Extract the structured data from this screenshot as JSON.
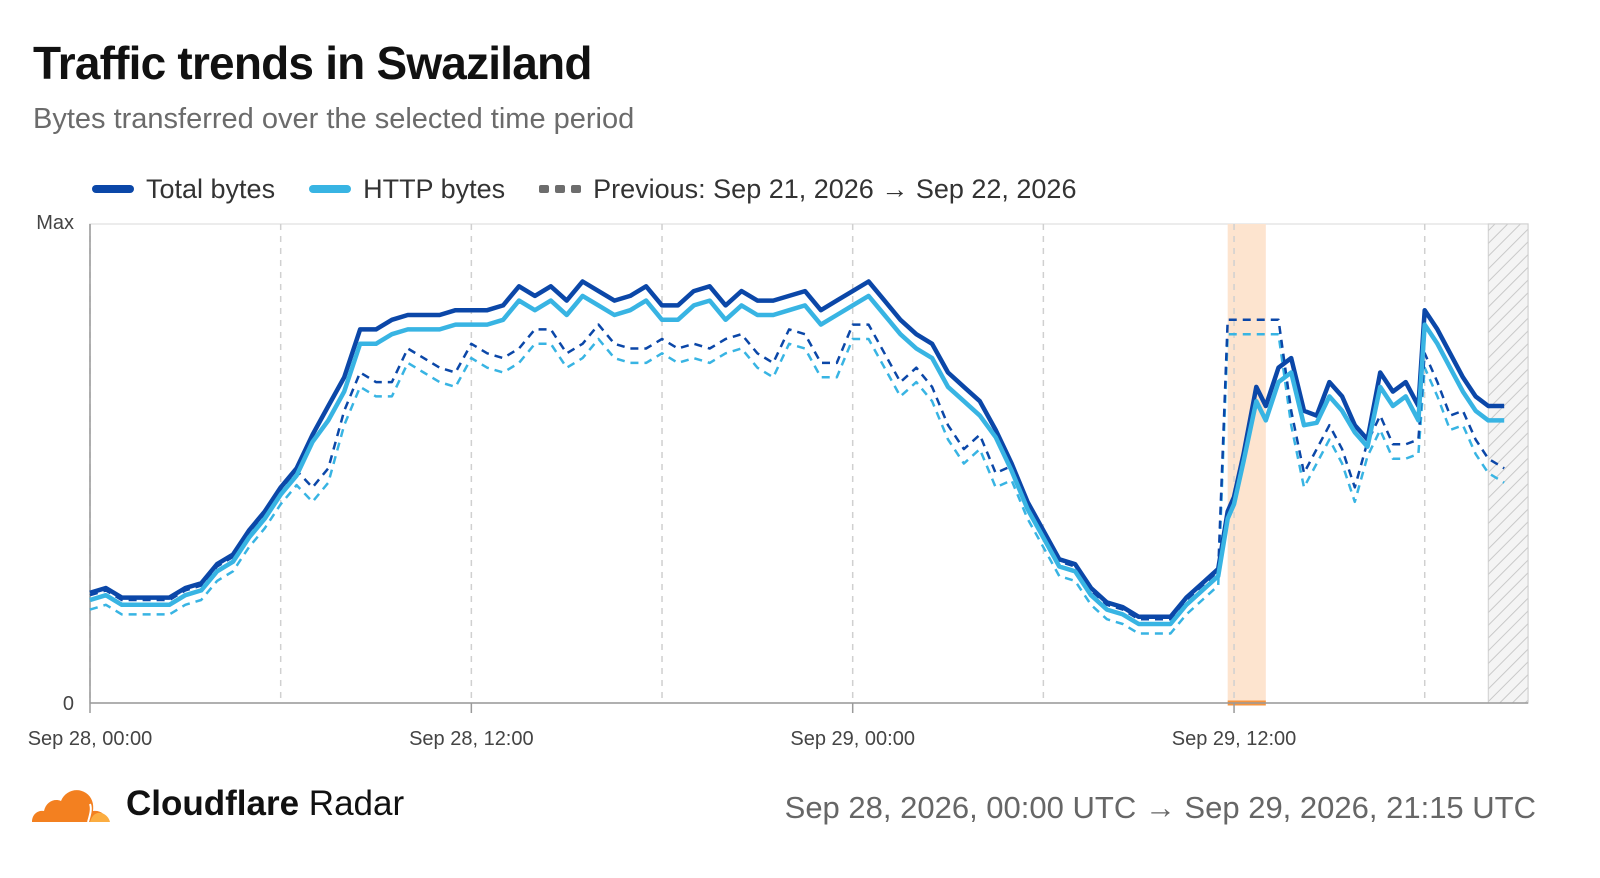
{
  "header": {
    "title": "Traffic trends in Swaziland",
    "subtitle": "Bytes transferred over the selected time period"
  },
  "legend": {
    "total": "Total bytes",
    "http": "HTTP bytes",
    "previous": "Previous: Sep 21, 2026 → Sep 22, 2026"
  },
  "footer": {
    "brand_bold": "Cloudflare",
    "brand_regular": " Radar",
    "range": "Sep 28, 2026, 00:00 UTC → Sep 29, 2026, 21:15 UTC"
  },
  "colors": {
    "total": "#0b47a8",
    "http": "#38b4e3",
    "previous_total": "#0b47a8",
    "previous_http": "#38b4e3",
    "anomaly": "#fde4cf",
    "anomaly_marker": "#f6953f",
    "grid": "#d0d0d0",
    "cloud_orange": "#f38020",
    "cloud_light": "#fbad41"
  },
  "icons": {
    "logo": "cloudflare-cloud-icon"
  },
  "chart_data": {
    "type": "line",
    "x_unit": "hours since Sep 28, 00:00 UTC",
    "x_range": [
      0,
      45.25
    ],
    "y_range": [
      0,
      100
    ],
    "y_ticks": [
      "0",
      "Max"
    ],
    "x_ticks": [
      {
        "x": 0,
        "label": "Sep 28, 00:00"
      },
      {
        "x": 12,
        "label": "Sep 28, 12:00"
      },
      {
        "x": 24,
        "label": "Sep 29, 00:00"
      },
      {
        "x": 36,
        "label": "Sep 29, 12:00"
      }
    ],
    "minor_grid_x": [
      6,
      18,
      30,
      42
    ],
    "anomaly_range": [
      35.8,
      37.0
    ],
    "incomplete_range": [
      44.0,
      45.25
    ],
    "series": [
      {
        "name": "Total bytes",
        "key": "total",
        "style": "solid",
        "x": [
          0,
          0.5,
          1,
          1.5,
          2,
          2.5,
          3,
          3.5,
          4,
          4.5,
          5,
          5.5,
          6,
          6.5,
          7,
          7.5,
          8,
          8.5,
          9,
          9.5,
          10,
          10.5,
          11,
          11.5,
          12,
          12.5,
          13,
          13.5,
          14,
          14.5,
          15,
          15.5,
          16,
          16.5,
          17,
          17.5,
          18,
          18.5,
          19,
          19.5,
          20,
          20.5,
          21,
          21.5,
          22,
          22.5,
          23,
          23.5,
          24,
          24.5,
          25,
          25.5,
          26,
          26.5,
          27,
          27.5,
          28,
          28.5,
          29,
          29.5,
          30,
          30.5,
          31,
          31.5,
          32,
          32.5,
          33,
          33.5,
          34,
          34.5,
          35,
          35.5,
          35.8,
          36,
          36.3,
          36.7,
          37,
          37.4,
          37.8,
          38.2,
          38.6,
          39,
          39.4,
          39.8,
          40.2,
          40.6,
          41,
          41.4,
          41.8,
          42,
          42.4,
          42.8,
          43.2,
          43.6,
          44,
          44.5
        ],
        "values": [
          23,
          24,
          22,
          22,
          22,
          22,
          24,
          25,
          29,
          31,
          36,
          40,
          45,
          49,
          56,
          62,
          68,
          78,
          78,
          80,
          81,
          81,
          81,
          82,
          82,
          82,
          83,
          87,
          85,
          87,
          84,
          88,
          86,
          84,
          85,
          87,
          83,
          83,
          86,
          87,
          83,
          86,
          84,
          84,
          85,
          86,
          82,
          84,
          86,
          88,
          84,
          80,
          77,
          75,
          69,
          66,
          63,
          57,
          50,
          42,
          36,
          30,
          29,
          24,
          21,
          20,
          18,
          18,
          18,
          22,
          25,
          28,
          40,
          43,
          52,
          66,
          62,
          70,
          72,
          61,
          60,
          67,
          64,
          58,
          55,
          69,
          65,
          67,
          62,
          82,
          78,
          73,
          68,
          64,
          62,
          62
        ],
        "values_shape_note": ""
      },
      {
        "name": "HTTP bytes",
        "key": "http",
        "style": "solid",
        "x": [],
        "values": []
      },
      {
        "name": "Previous: Sep 21, 2026 → Sep 22, 2026",
        "key": "previous",
        "style": "dashed",
        "x": [],
        "values": []
      }
    ]
  }
}
